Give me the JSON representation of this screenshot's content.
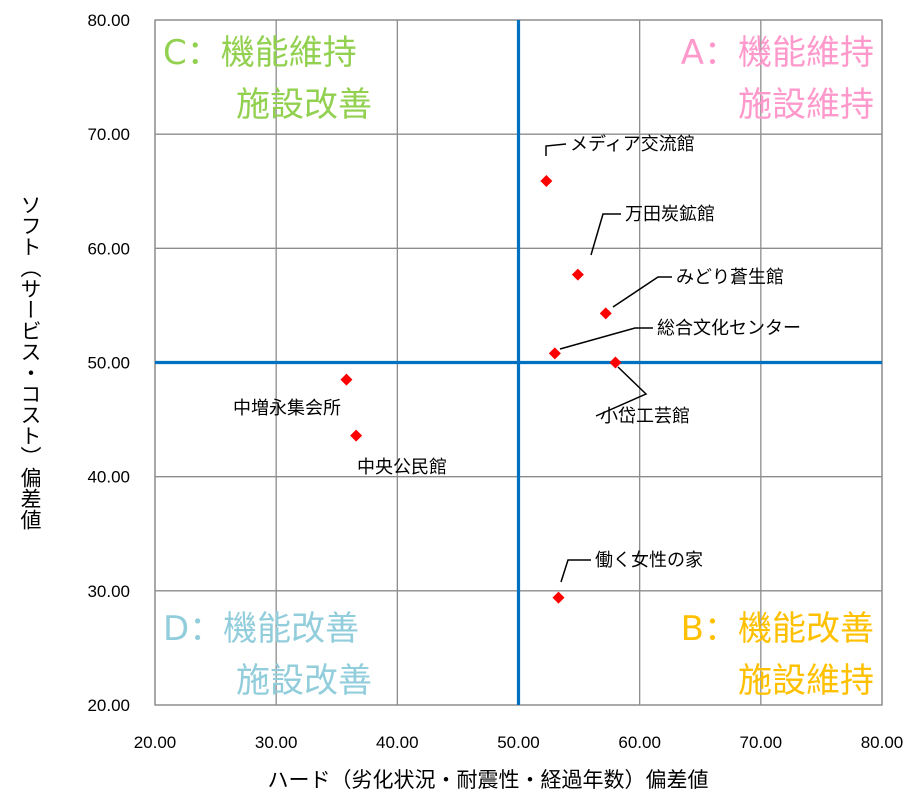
{
  "chart_data": {
    "type": "scatter",
    "title": "",
    "xlabel": "ハード（劣化状況・耐震性・経過年数）偏差値",
    "ylabel": "ソフト（サービス・コスト）偏差値",
    "xlim": [
      20,
      80
    ],
    "ylim": [
      20,
      80
    ],
    "x_ticks": [
      "20.00",
      "30.00",
      "40.00",
      "50.00",
      "60.00",
      "70.00",
      "80.00"
    ],
    "y_ticks": [
      "20.00",
      "30.00",
      "40.00",
      "50.00",
      "60.00",
      "70.00",
      "80.00"
    ],
    "grid": true,
    "reference_lines": {
      "x": 50,
      "y": 50,
      "color": "#0070c0"
    },
    "marker_color": "#ff0000",
    "points": [
      {
        "name": "メディア交流館",
        "x": 52.3,
        "y": 65.9
      },
      {
        "name": "万田炭鉱館",
        "x": 54.9,
        "y": 57.7
      },
      {
        "name": "みどり蒼生館",
        "x": 57.2,
        "y": 54.3
      },
      {
        "name": "総合文化センター",
        "x": 53.0,
        "y": 50.8
      },
      {
        "name": "小岱工芸館",
        "x": 58.0,
        "y": 50.0
      },
      {
        "name": "中増永集会所",
        "x": 35.8,
        "y": 48.5
      },
      {
        "name": "中央公民館",
        "x": 36.6,
        "y": 43.6
      },
      {
        "name": "働く女性の家",
        "x": 53.3,
        "y": 29.4
      }
    ],
    "quadrants": [
      {
        "id": "A",
        "line1": "A：機能維持",
        "line2": "施設維持",
        "color": "#ff99cc"
      },
      {
        "id": "B",
        "line1": "B：機能改善",
        "line2": "施設維持",
        "color": "#ffc000"
      },
      {
        "id": "C",
        "line1": "C：機能維持",
        "line2": "施設改善",
        "color": "#92d050"
      },
      {
        "id": "D",
        "line1": "D：機能改善",
        "line2": "施設改善",
        "color": "#92cddc"
      }
    ]
  }
}
